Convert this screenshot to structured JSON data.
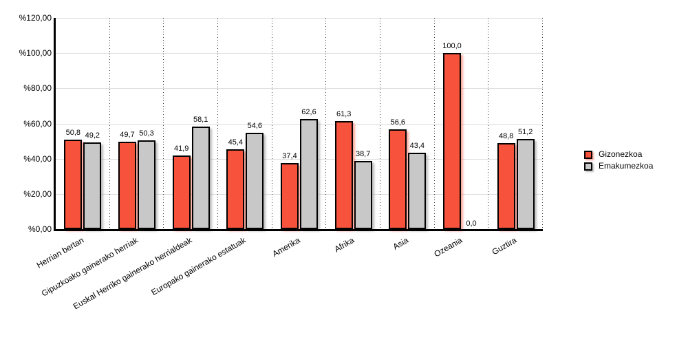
{
  "chart_data": {
    "type": "bar",
    "title": "",
    "categories": [
      "Herrian bertan",
      "Gipuzkoako gainerako herriak",
      "Euskal Herriko gainerako herrialdeak",
      "Europako gainerako estatuak",
      "Amerika",
      "Afrika",
      "Asia",
      "Ozeania",
      "Guztira"
    ],
    "series": [
      {
        "name": "Gizonezkoa",
        "color": "#F6523C",
        "shadow_color": "rgba(246, 82, 60, 0.5)",
        "values": [
          50.8,
          49.7,
          41.9,
          45.4,
          37.4,
          61.3,
          56.6,
          100.0,
          48.8
        ],
        "value_labels": [
          "50,8",
          "49,7",
          "41,9",
          "45,4",
          "37,4",
          "61,3",
          "56,6",
          "100,0",
          "48,8"
        ]
      },
      {
        "name": "Emakumezkoa",
        "color": "#C8C8C8",
        "shadow_color": "rgba(125, 125, 125, 0.5)",
        "values": [
          49.2,
          50.3,
          58.1,
          54.6,
          62.6,
          38.7,
          43.4,
          0.0,
          51.2
        ],
        "value_labels": [
          "49,2",
          "50,3",
          "58,1",
          "54,6",
          "62,6",
          "38,7",
          "43,4",
          "0,0",
          "51,2"
        ]
      }
    ],
    "y_axis": {
      "min": 0,
      "max": 120,
      "step": 20,
      "tick_labels": [
        "%0,00",
        "%20,00",
        "%40,00",
        "%60,00",
        "%80,00",
        "%100,00",
        "%120,00"
      ]
    },
    "legend_position": "right",
    "grid": {
      "horizontal": "solid-light-gray",
      "vertical": "dotted-category-separators"
    }
  },
  "colors": {
    "background": "#FFFFFF",
    "axis": "#000000",
    "gridline": "#DCDCDC",
    "bar_red": "#F6523C",
    "bar_gray": "#C8C8C8"
  }
}
